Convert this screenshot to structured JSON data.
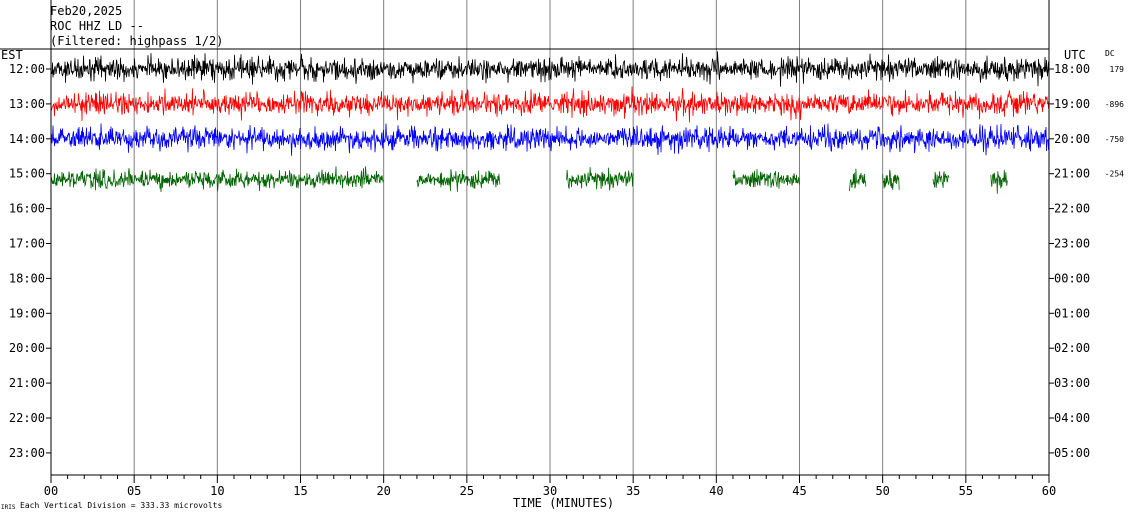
{
  "header": {
    "date": "Feb20,2025",
    "station": "ROC HHZ LD --",
    "filter": "(Filtered: highpass 1/2)"
  },
  "left_axis_label": "EST",
  "right_axis_label": "UTC",
  "dc_label": "DC",
  "footer_note": "Each Vertical Division =  333.33 microvolts",
  "footer_logo_text": "IRIS",
  "colors": {
    "black": "#000000",
    "red": "#ff0000",
    "blue": "#0000ff",
    "green": "#006400"
  },
  "chart_data": {
    "type": "line",
    "xlabel": "TIME (MINUTES)",
    "xlim": [
      0,
      60
    ],
    "x_ticks": [
      "00",
      "05",
      "10",
      "15",
      "20",
      "25",
      "30",
      "35",
      "40",
      "45",
      "50",
      "55",
      "60"
    ],
    "y_left_ticks": [
      "12:00",
      "13:00",
      "14:00",
      "15:00",
      "16:00",
      "17:00",
      "18:00",
      "19:00",
      "20:00",
      "21:00",
      "22:00",
      "23:00"
    ],
    "y_right_ticks": [
      "18:00",
      "19:00",
      "20:00",
      "21:00",
      "22:00",
      "23:00",
      "00:00",
      "01:00",
      "02:00",
      "03:00",
      "04:00",
      "05:00"
    ],
    "grid_x": true,
    "series": [
      {
        "hour": "12:00",
        "color": "#000000",
        "dc": "179",
        "segments": [
          [
            0,
            60
          ]
        ]
      },
      {
        "hour": "13:00",
        "color": "#ff0000",
        "dc": "-896",
        "segments": [
          [
            0,
            60
          ]
        ]
      },
      {
        "hour": "14:00",
        "color": "#0000ff",
        "dc": "-750",
        "segments": [
          [
            0,
            60
          ]
        ]
      },
      {
        "hour": "15:00",
        "color": "#006400",
        "dc": "-254",
        "segments": [
          [
            0,
            20
          ],
          [
            22,
            27
          ],
          [
            31,
            35
          ],
          [
            41,
            45
          ],
          [
            48,
            49
          ],
          [
            50,
            51
          ],
          [
            53,
            54
          ],
          [
            56.5,
            57.5
          ]
        ]
      }
    ]
  }
}
